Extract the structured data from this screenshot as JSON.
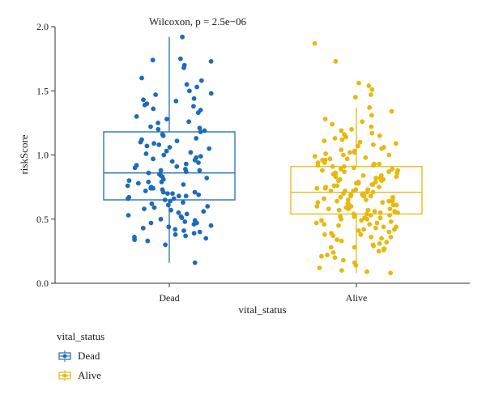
{
  "chart_data": {
    "type": "box",
    "annotation": "Wilcoxon, p = 2.5e−06",
    "xlabel": "vital_status",
    "ylabel": "riskScore",
    "ylim": [
      0,
      2.0
    ],
    "yticks": [
      "0.0",
      "0.5",
      "1.0",
      "1.5",
      "2.0"
    ],
    "ytick_values": [
      0,
      0.5,
      1.0,
      1.5,
      2.0
    ],
    "categories": [
      "Dead",
      "Alive"
    ],
    "legend": {
      "title": "vital_status",
      "position": "bottom-left"
    },
    "groups": [
      {
        "name": "Dead",
        "color": "#1f6bb8",
        "box": {
          "min": 0.16,
          "q1": 0.65,
          "median": 0.86,
          "q3": 1.18,
          "max": 1.92
        },
        "points": [
          1.92,
          1.74,
          1.75,
          1.73,
          1.7,
          1.68,
          1.6,
          1.58,
          1.55,
          1.53,
          1.5,
          1.47,
          1.44,
          1.43,
          1.42,
          1.4,
          1.39,
          1.38,
          1.35,
          1.33,
          1.3,
          1.28,
          1.26,
          1.25,
          1.22,
          1.2,
          1.19,
          1.18,
          1.16,
          1.15,
          1.13,
          1.12,
          1.1,
          1.09,
          1.08,
          1.06,
          1.05,
          1.03,
          1.02,
          1.01,
          1.0,
          0.99,
          0.98,
          0.97,
          0.95,
          0.94,
          0.93,
          0.92,
          0.91,
          0.9,
          0.89,
          0.88,
          0.87,
          0.86,
          0.85,
          0.84,
          0.83,
          0.82,
          0.81,
          0.8,
          0.79,
          0.78,
          0.77,
          0.76,
          0.75,
          0.74,
          0.73,
          0.72,
          0.71,
          0.7,
          0.7,
          0.69,
          0.68,
          0.68,
          0.67,
          0.66,
          0.65,
          0.64,
          0.63,
          0.62,
          0.61,
          0.6,
          0.58,
          0.57,
          0.56,
          0.55,
          0.53,
          0.52,
          0.51,
          0.5,
          0.49,
          0.48,
          0.47,
          0.46,
          0.45,
          0.44,
          0.43,
          0.42,
          0.41,
          0.4,
          0.38,
          0.37,
          0.36,
          0.35,
          0.34,
          0.33,
          0.3,
          0.16,
          1.36,
          1.21,
          1.07,
          0.96,
          0.79,
          0.71,
          0.66,
          0.59,
          0.54,
          0.47,
          0.39,
          1.48,
          1.11,
          0.88,
          0.74
        ]
      },
      {
        "name": "Alive",
        "color": "#e8b80f",
        "box": {
          "min": 0.08,
          "q1": 0.54,
          "median": 0.71,
          "q3": 0.91,
          "max": 1.37
        },
        "points": [
          1.87,
          1.73,
          1.56,
          1.54,
          1.51,
          1.47,
          1.45,
          1.37,
          1.34,
          1.31,
          1.28,
          1.26,
          1.24,
          1.22,
          1.2,
          1.19,
          1.17,
          1.16,
          1.14,
          1.13,
          1.12,
          1.11,
          1.1,
          1.09,
          1.08,
          1.07,
          1.06,
          1.05,
          1.04,
          1.03,
          1.02,
          1.01,
          1.0,
          1.0,
          0.99,
          0.98,
          0.97,
          0.96,
          0.96,
          0.95,
          0.94,
          0.93,
          0.93,
          0.92,
          0.91,
          0.91,
          0.9,
          0.89,
          0.89,
          0.88,
          0.87,
          0.87,
          0.86,
          0.85,
          0.85,
          0.84,
          0.83,
          0.83,
          0.82,
          0.81,
          0.81,
          0.8,
          0.79,
          0.79,
          0.78,
          0.77,
          0.77,
          0.76,
          0.75,
          0.75,
          0.74,
          0.74,
          0.73,
          0.72,
          0.72,
          0.71,
          0.71,
          0.7,
          0.7,
          0.69,
          0.68,
          0.68,
          0.67,
          0.67,
          0.66,
          0.65,
          0.65,
          0.64,
          0.64,
          0.63,
          0.62,
          0.62,
          0.61,
          0.61,
          0.6,
          0.59,
          0.59,
          0.58,
          0.58,
          0.57,
          0.56,
          0.56,
          0.55,
          0.55,
          0.54,
          0.53,
          0.53,
          0.52,
          0.51,
          0.51,
          0.5,
          0.49,
          0.49,
          0.48,
          0.47,
          0.47,
          0.46,
          0.45,
          0.44,
          0.43,
          0.42,
          0.41,
          0.4,
          0.39,
          0.38,
          0.37,
          0.36,
          0.35,
          0.34,
          0.33,
          0.32,
          0.31,
          0.3,
          0.29,
          0.28,
          0.27,
          0.26,
          0.25,
          0.24,
          0.22,
          0.21,
          0.2,
          0.18,
          0.16,
          0.14,
          0.12,
          0.1,
          0.09,
          0.08,
          0.97,
          0.92,
          0.86,
          0.82,
          0.78,
          0.73,
          0.69,
          0.66,
          0.63,
          0.6,
          0.57,
          0.54,
          0.5,
          0.46,
          0.42,
          0.38,
          1.15,
          1.02,
          0.94,
          0.88,
          0.84,
          0.8,
          0.76,
          0.72,
          0.68,
          0.64,
          0.58,
          0.52,
          0.44,
          0.36,
          0.28
        ]
      }
    ]
  }
}
